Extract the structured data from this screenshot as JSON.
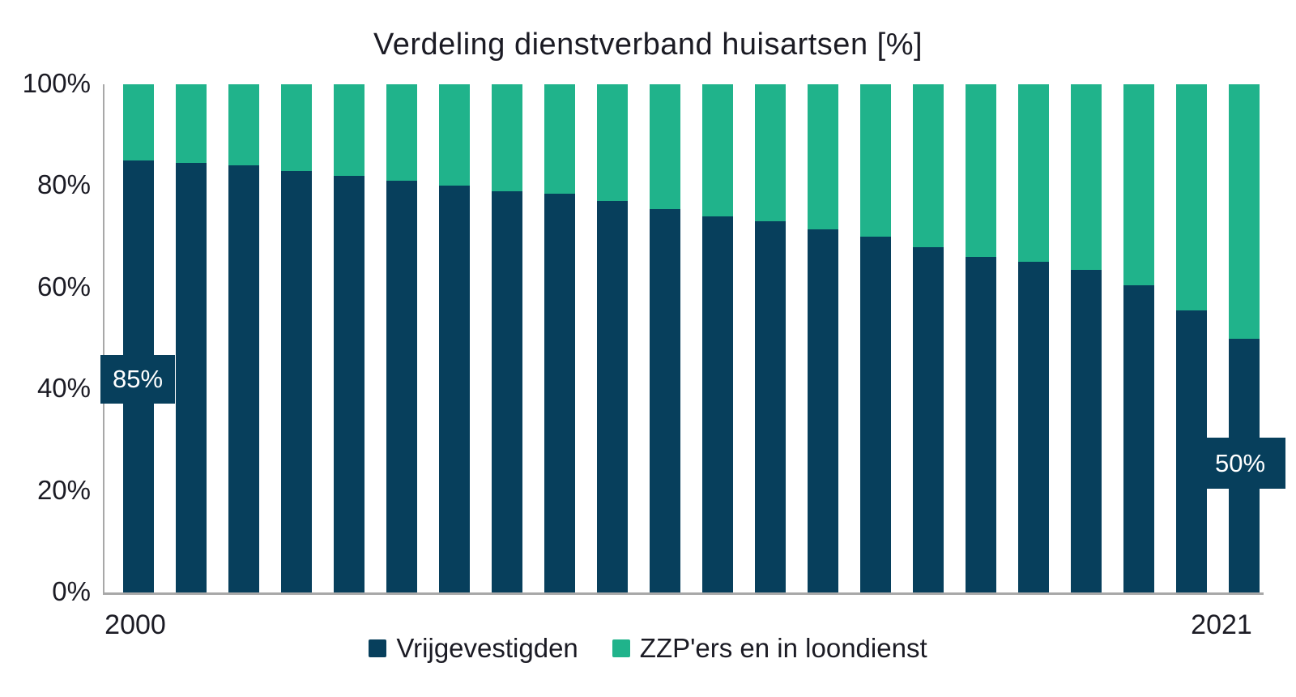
{
  "title": "Verdeling dienstverband huisartsen [%]",
  "colors": {
    "navy": "#073F5C",
    "green": "#20B38B",
    "axis": "#A8A8A8",
    "text": "#1B1B24",
    "annotation_text": "#FFFFFF"
  },
  "y_axis": {
    "ticks": [
      {
        "label": "100%",
        "value": 100
      },
      {
        "label": "80%",
        "value": 80
      },
      {
        "label": "60%",
        "value": 60
      },
      {
        "label": "40%",
        "value": 40
      },
      {
        "label": "20%",
        "value": 20
      },
      {
        "label": "0%",
        "value": 0
      }
    ]
  },
  "x_axis": {
    "first_label": "2000",
    "last_label": "2021"
  },
  "legend": [
    {
      "label": "Vrijgevestigden",
      "color": "#073F5C"
    },
    {
      "label": "ZZP'ers en in loondienst",
      "color": "#20B38B"
    }
  ],
  "annotations": [
    {
      "text": "85%",
      "category": "2000",
      "series": "Vrijgevestigden"
    },
    {
      "text": "50%",
      "category": "2021",
      "series": "Vrijgevestigden"
    }
  ],
  "chart_data": {
    "type": "bar",
    "stacked": true,
    "title": "Verdeling dienstverband huisartsen [%]",
    "categories": [
      "2000",
      "2001",
      "2002",
      "2003",
      "2004",
      "2005",
      "2006",
      "2007",
      "2008",
      "2009",
      "2010",
      "2011",
      "2012",
      "2013",
      "2014",
      "2015",
      "2016",
      "2017",
      "2018",
      "2019",
      "2020",
      "2021"
    ],
    "series": [
      {
        "name": "Vrijgevestigden",
        "color": "#073F5C",
        "values": [
          85,
          84.5,
          84,
          83,
          82,
          81,
          80,
          79,
          78.5,
          77,
          75.5,
          74,
          73,
          71.5,
          70,
          68,
          66,
          65,
          63.5,
          60.5,
          55.5,
          50
        ]
      },
      {
        "name": "ZZP'ers en in loondienst",
        "color": "#20B38B",
        "values": [
          15,
          15.5,
          16,
          17,
          18,
          19,
          20,
          21,
          21.5,
          23,
          24.5,
          26,
          27,
          28.5,
          30,
          32,
          34,
          35,
          36.5,
          39.5,
          44.5,
          50
        ]
      }
    ],
    "ylim": [
      0,
      100
    ],
    "y_tick_interval": 20,
    "x_tick_labels_shown": [
      "2000",
      "2021"
    ],
    "data_labels": [
      {
        "category": "2000",
        "series": "Vrijgevestigden",
        "text": "85%"
      },
      {
        "category": "2021",
        "series": "Vrijgevestigden",
        "text": "50%"
      }
    ],
    "legend_position": "bottom",
    "grid": false
  }
}
